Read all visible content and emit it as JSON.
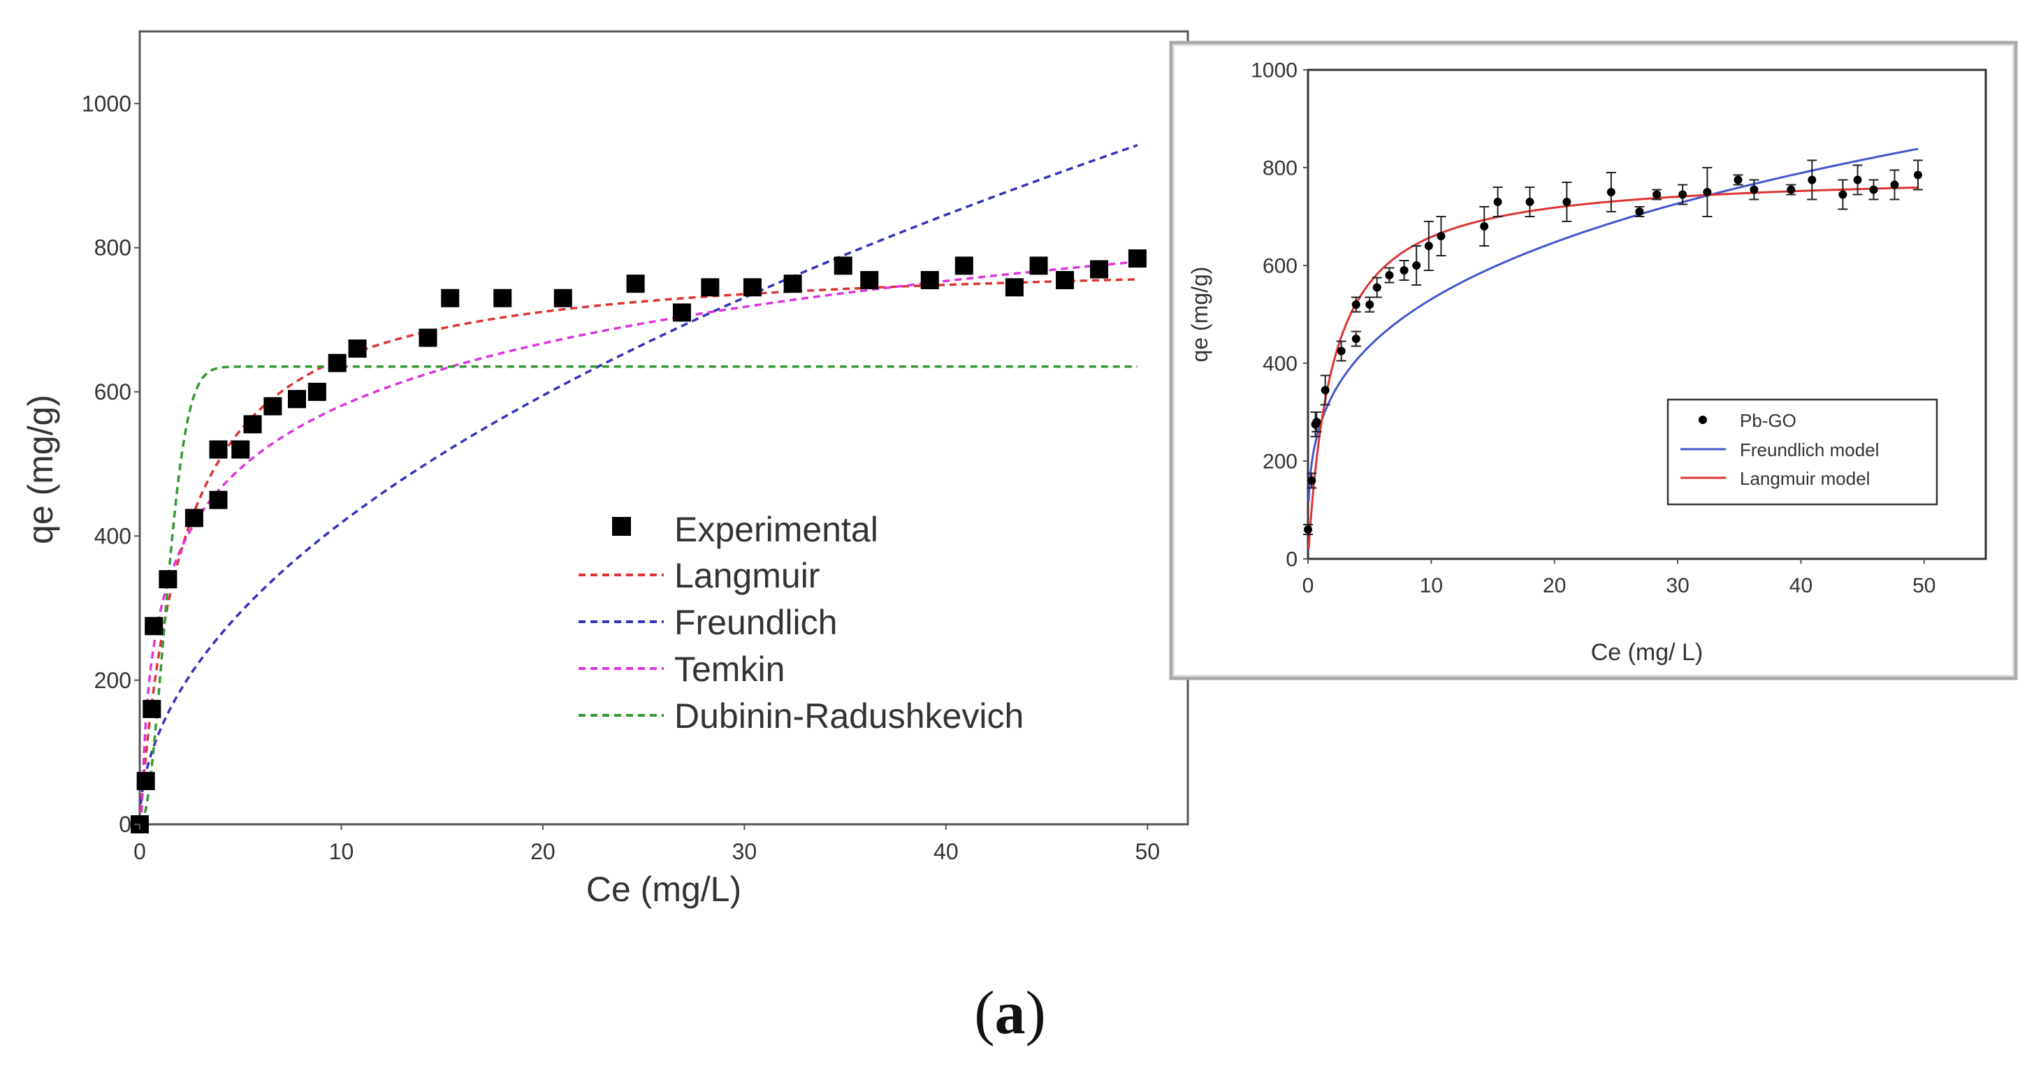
{
  "chart_data": [
    {
      "type": "scatter",
      "xlabel": "Ce (mg/L)",
      "ylabel": "qe (mg/g)",
      "xlim": [
        0,
        52
      ],
      "ylim": [
        0,
        1100
      ],
      "xticks": [
        0,
        10,
        20,
        30,
        40,
        50
      ],
      "yticks": [
        0,
        200,
        400,
        600,
        800,
        1000
      ],
      "legend_position": "center-right",
      "series": [
        {
          "name": "Experimental",
          "kind": "marker",
          "color": "#000000",
          "x": [
            0,
            0.3,
            0.6,
            0.7,
            1.4,
            2.7,
            3.9,
            3.9,
            5.0,
            5.6,
            6.6,
            7.8,
            8.8,
            9.8,
            10.8,
            14.3,
            15.4,
            18.0,
            21.0,
            24.6,
            26.9,
            28.3,
            30.4,
            32.4,
            34.9,
            36.2,
            39.2,
            40.9,
            43.4,
            44.6,
            45.9,
            47.6,
            49.5
          ],
          "y": [
            0,
            60,
            160,
            275,
            340,
            425,
            450,
            520,
            520,
            555,
            580,
            590,
            600,
            640,
            660,
            675,
            730,
            730,
            730,
            750,
            710,
            745,
            745,
            750,
            775,
            755,
            755,
            775,
            745,
            775,
            755,
            770,
            785
          ]
        },
        {
          "name": "Langmuir",
          "kind": "line",
          "color": "#dd3333",
          "model": "langmuir",
          "params": {
            "qmax": 790,
            "KL": 0.45
          }
        },
        {
          "name": "Freundlich",
          "kind": "line",
          "color": "#3333bb",
          "model": "freundlich",
          "params": {
            "KF": 130,
            "n": 1.97
          }
        },
        {
          "name": "Temkin",
          "kind": "line",
          "color": "#dd33dd",
          "model": "temkin",
          "params": {
            "A": 10.4,
            "B": 125
          }
        },
        {
          "name": "Dubinin-Radushkevich",
          "kind": "line",
          "color": "#339933",
          "model": "dubinin_radushkevich",
          "params": {
            "qm": 635,
            "k": 0.38
          }
        }
      ]
    },
    {
      "type": "scatter",
      "xlabel": "Ce (mg/ L)",
      "ylabel": "qe (mg/g)",
      "xlim": [
        0,
        55
      ],
      "ylim": [
        0,
        1000
      ],
      "xticks": [
        0,
        10,
        20,
        30,
        40,
        50
      ],
      "yticks": [
        0,
        200,
        400,
        600,
        800,
        1000
      ],
      "legend_position": "center-right",
      "series": [
        {
          "name": "Pb-GO",
          "kind": "marker",
          "color": "#000000",
          "x": [
            0,
            0.3,
            0.6,
            0.7,
            1.4,
            2.7,
            3.9,
            3.9,
            5.0,
            5.6,
            6.6,
            7.8,
            8.8,
            9.8,
            10.8,
            14.3,
            15.4,
            18.0,
            21.0,
            24.6,
            26.9,
            28.3,
            30.4,
            32.4,
            34.9,
            36.2,
            39.2,
            40.9,
            43.4,
            44.6,
            45.9,
            47.6,
            49.5
          ],
          "y": [
            60,
            160,
            275,
            280,
            345,
            425,
            450,
            520,
            520,
            555,
            580,
            590,
            600,
            640,
            660,
            680,
            730,
            730,
            730,
            750,
            710,
            745,
            745,
            750,
            775,
            755,
            755,
            775,
            745,
            775,
            755,
            765,
            785
          ],
          "err": [
            10,
            15,
            25,
            20,
            30,
            20,
            15,
            15,
            15,
            20,
            15,
            20,
            40,
            50,
            40,
            40,
            30,
            30,
            40,
            40,
            10,
            10,
            20,
            50,
            10,
            20,
            10,
            40,
            30,
            30,
            20,
            30,
            30
          ]
        },
        {
          "name": "Freundlich model",
          "kind": "line",
          "color": "#4455cc",
          "model": "freundlich",
          "params": {
            "KF": 275,
            "n": 3.5
          }
        },
        {
          "name": "Langmuir model",
          "kind": "line",
          "color": "#dd3333",
          "model": "langmuir",
          "params": {
            "qmax": 790,
            "KL": 0.5
          }
        }
      ]
    }
  ],
  "caption": {
    "open": "(",
    "label": "a",
    "close": ")"
  }
}
